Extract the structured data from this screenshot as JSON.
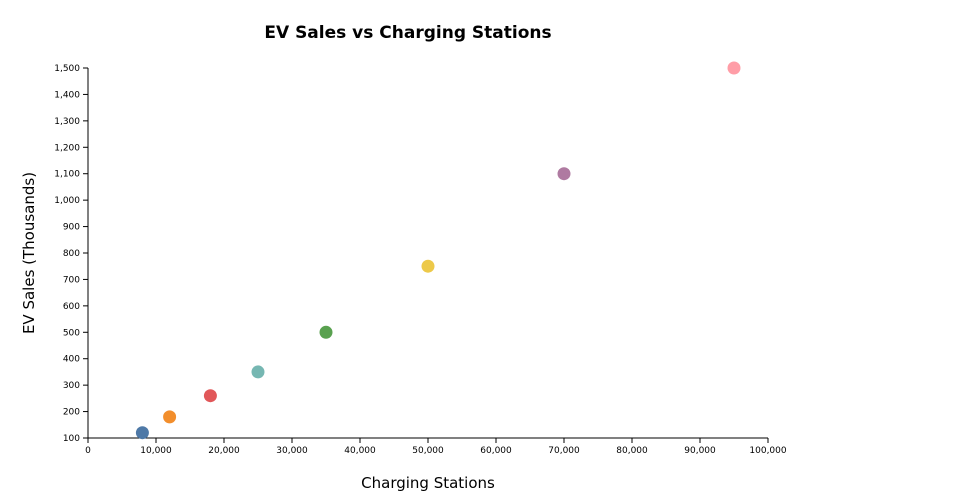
{
  "chart_data": {
    "type": "scatter",
    "title": "EV Sales vs Charging Stations",
    "xlabel": "Charging Stations",
    "ylabel": "EV Sales (Thousands)",
    "xlim": [
      0,
      100000
    ],
    "ylim": [
      100,
      1500
    ],
    "x_ticks": [
      0,
      10000,
      20000,
      30000,
      40000,
      50000,
      60000,
      70000,
      80000,
      90000,
      100000
    ],
    "x_tick_labels": [
      "0",
      "10,000",
      "20,000",
      "30,000",
      "40,000",
      "50,000",
      "60,000",
      "70,000",
      "80,000",
      "90,000",
      "100,000"
    ],
    "y_ticks": [
      100,
      200,
      300,
      400,
      500,
      600,
      700,
      800,
      900,
      1000,
      1100,
      1200,
      1300,
      1400,
      1500
    ],
    "y_tick_labels": [
      "100",
      "200",
      "300",
      "400",
      "500",
      "600",
      "700",
      "800",
      "900",
      "1,000",
      "1,100",
      "1,200",
      "1,300",
      "1,400",
      "1,500"
    ],
    "grid": false,
    "legend": "none",
    "points": [
      {
        "x": 8000,
        "y": 120,
        "color": "#4e79a7"
      },
      {
        "x": 12000,
        "y": 180,
        "color": "#f28e2c"
      },
      {
        "x": 18000,
        "y": 260,
        "color": "#e15759"
      },
      {
        "x": 25000,
        "y": 350,
        "color": "#76b7b2"
      },
      {
        "x": 35000,
        "y": 500,
        "color": "#59a14f"
      },
      {
        "x": 50000,
        "y": 750,
        "color": "#edc949"
      },
      {
        "x": 70000,
        "y": 1100,
        "color": "#af7aa1"
      },
      {
        "x": 95000,
        "y": 1500,
        "color": "#ff9da7"
      }
    ]
  }
}
